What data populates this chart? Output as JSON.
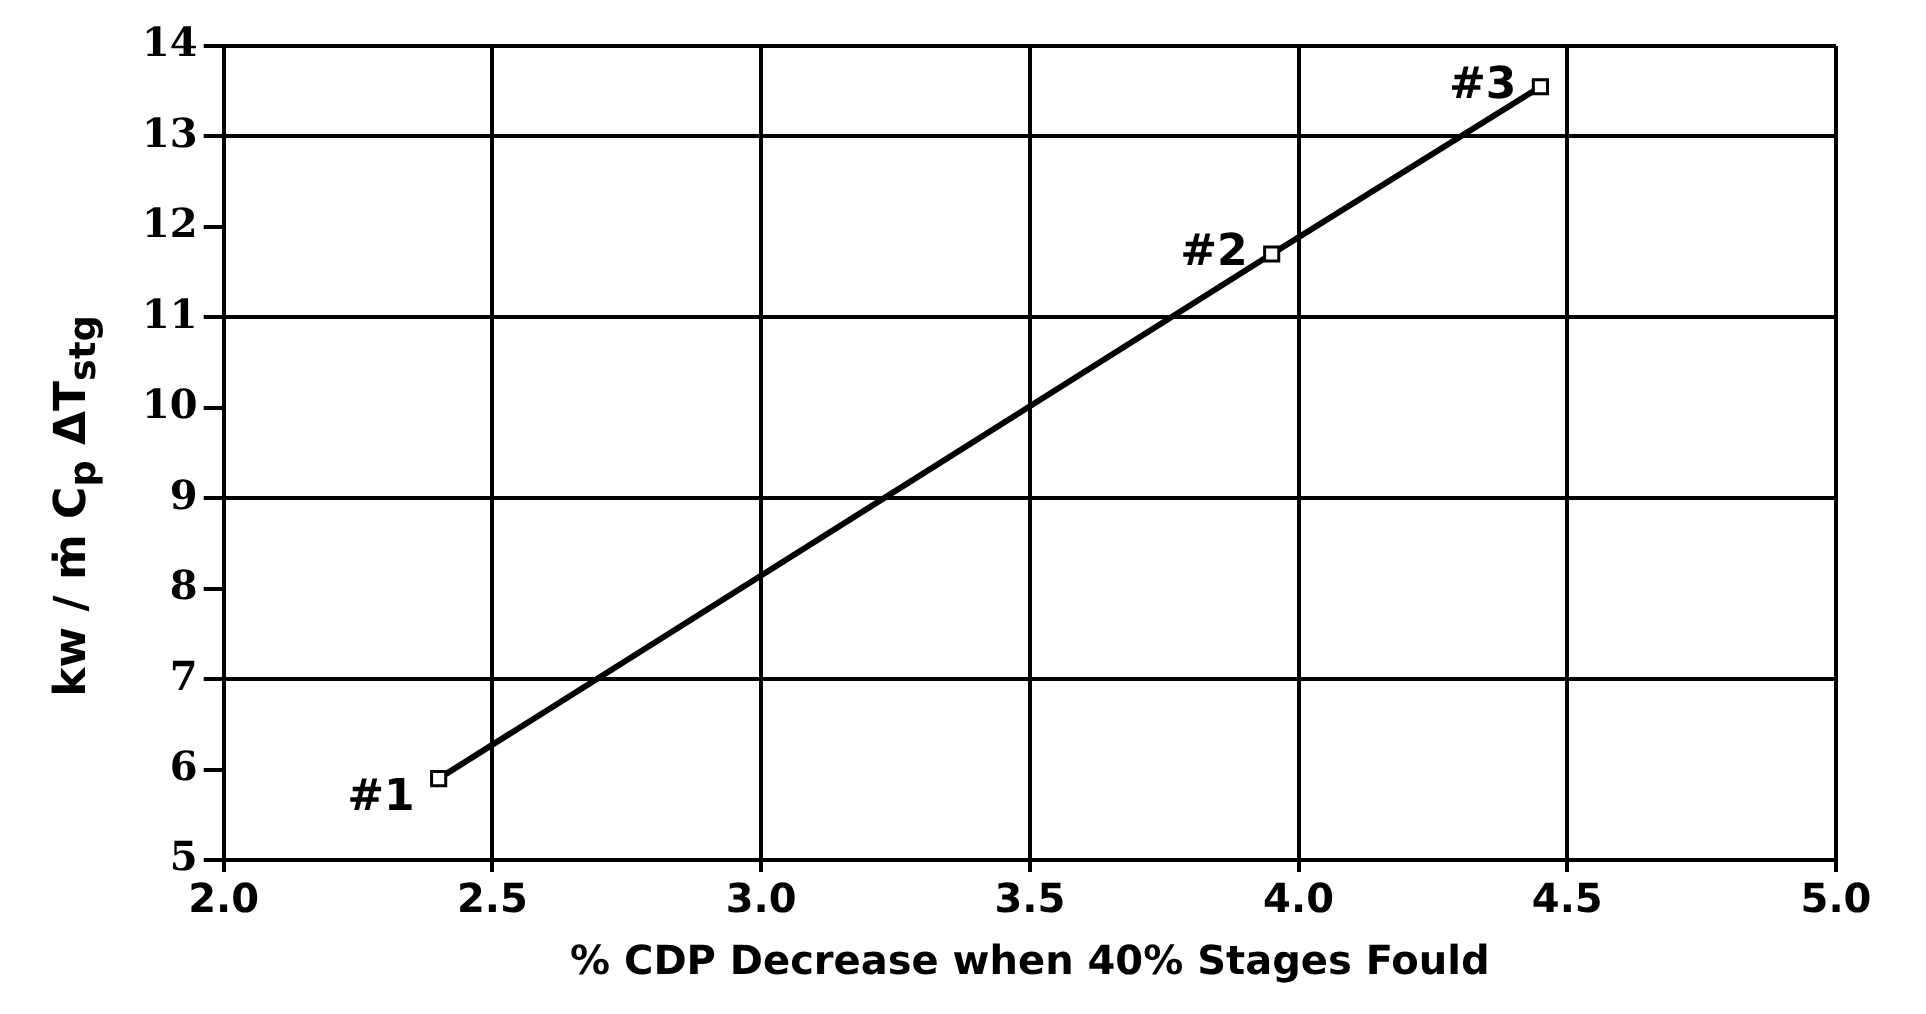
{
  "chart_data": {
    "type": "line",
    "xlabel": "% CDP Decrease when 40% Stages Fould",
    "ylabel": "kw / ṁ C$_{p}$ ΔT$_{stg}$",
    "x": [
      2.4,
      3.95,
      4.45
    ],
    "series": [
      {
        "color": "#000000",
        "values": [
          5.9,
          11.7,
          13.55
        ]
      }
    ],
    "xlim": [
      2.0,
      5.0
    ],
    "xticks": [
      {
        "value": 2,
        "label": "2.0"
      },
      2.5,
      {
        "value": 3,
        "label": "3.0"
      },
      3.5,
      {
        "value": 4,
        "label": "4.0"
      },
      4.5,
      {
        "value": 5,
        "label": "5.0"
      }
    ],
    "ylim": [
      5,
      14
    ],
    "yticks": [
      5,
      6,
      7,
      8,
      9,
      10,
      11,
      12,
      13,
      14
    ],
    "grid": true,
    "legend": false,
    "marker": "square",
    "line_style": "solid",
    "annotations": [
      {
        "text": "#1",
        "x": 2.4,
        "y": 5.9
      },
      {
        "text": "#2",
        "x": 3.95,
        "y": 11.7
      },
      {
        "text": "#3",
        "x": 4.45,
        "y": 13.55
      }
    ]
  }
}
